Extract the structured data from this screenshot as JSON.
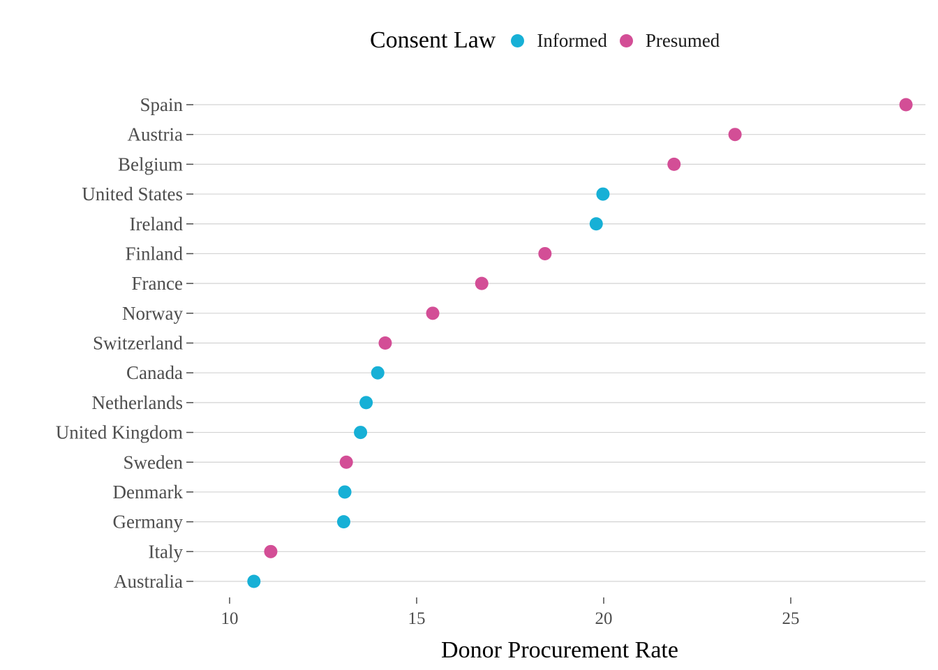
{
  "chart_data": {
    "type": "scatter",
    "title": "",
    "xlabel": "Donor Procurement Rate",
    "ylabel": "",
    "xlim": [
      8.9,
      28.6
    ],
    "x_ticks": [
      10,
      15,
      20,
      25
    ],
    "grid": "horizontal major lines",
    "legend": {
      "title": "Consent Law",
      "position": "top",
      "entries": [
        {
          "name": "Informed",
          "color": "#17b0d6"
        },
        {
          "name": "Presumed",
          "color": "#d34e96"
        }
      ]
    },
    "categories": [
      "Australia",
      "Italy",
      "Germany",
      "Denmark",
      "Sweden",
      "United Kingdom",
      "Netherlands",
      "Canada",
      "Switzerland",
      "Norway",
      "France",
      "Finland",
      "Ireland",
      "United States",
      "Belgium",
      "Austria",
      "Spain"
    ],
    "points": [
      {
        "country": "Australia",
        "value": 10.65,
        "consent": "Informed"
      },
      {
        "country": "Italy",
        "value": 11.1,
        "consent": "Presumed"
      },
      {
        "country": "Germany",
        "value": 13.05,
        "consent": "Informed"
      },
      {
        "country": "Denmark",
        "value": 13.08,
        "consent": "Informed"
      },
      {
        "country": "Sweden",
        "value": 13.12,
        "consent": "Presumed"
      },
      {
        "country": "United Kingdom",
        "value": 13.5,
        "consent": "Informed"
      },
      {
        "country": "Netherlands",
        "value": 13.65,
        "consent": "Informed"
      },
      {
        "country": "Canada",
        "value": 13.96,
        "consent": "Informed"
      },
      {
        "country": "Switzerland",
        "value": 14.16,
        "consent": "Presumed"
      },
      {
        "country": "Norway",
        "value": 15.43,
        "consent": "Presumed"
      },
      {
        "country": "France",
        "value": 16.74,
        "consent": "Presumed"
      },
      {
        "country": "Finland",
        "value": 18.43,
        "consent": "Presumed"
      },
      {
        "country": "Ireland",
        "value": 19.8,
        "consent": "Informed"
      },
      {
        "country": "United States",
        "value": 19.98,
        "consent": "Informed"
      },
      {
        "country": "Belgium",
        "value": 21.88,
        "consent": "Presumed"
      },
      {
        "country": "Austria",
        "value": 23.51,
        "consent": "Presumed"
      },
      {
        "country": "Spain",
        "value": 28.08,
        "consent": "Presumed"
      }
    ]
  }
}
